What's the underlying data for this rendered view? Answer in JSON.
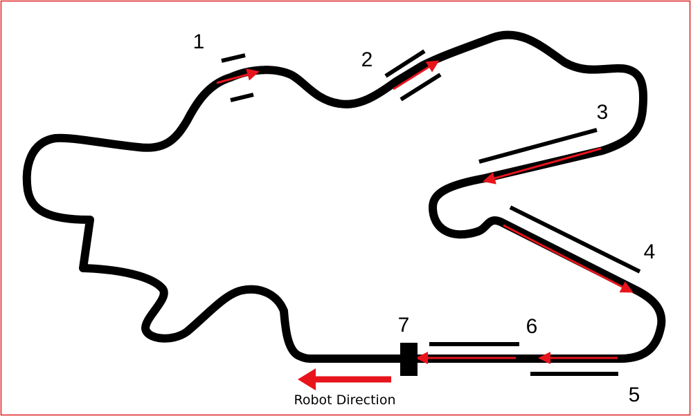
{
  "colors": {
    "frame": "#e02020",
    "track": "#000000",
    "arrow": "#e8141c",
    "background": "#ffffff"
  },
  "segments": [
    {
      "id": "1",
      "label": "1"
    },
    {
      "id": "2",
      "label": "2"
    },
    {
      "id": "3",
      "label": "3"
    },
    {
      "id": "4",
      "label": "4"
    },
    {
      "id": "5",
      "label": "5"
    },
    {
      "id": "6",
      "label": "6"
    },
    {
      "id": "7",
      "label": "7"
    }
  ],
  "legend": {
    "direction_label": "Robot Direction"
  }
}
